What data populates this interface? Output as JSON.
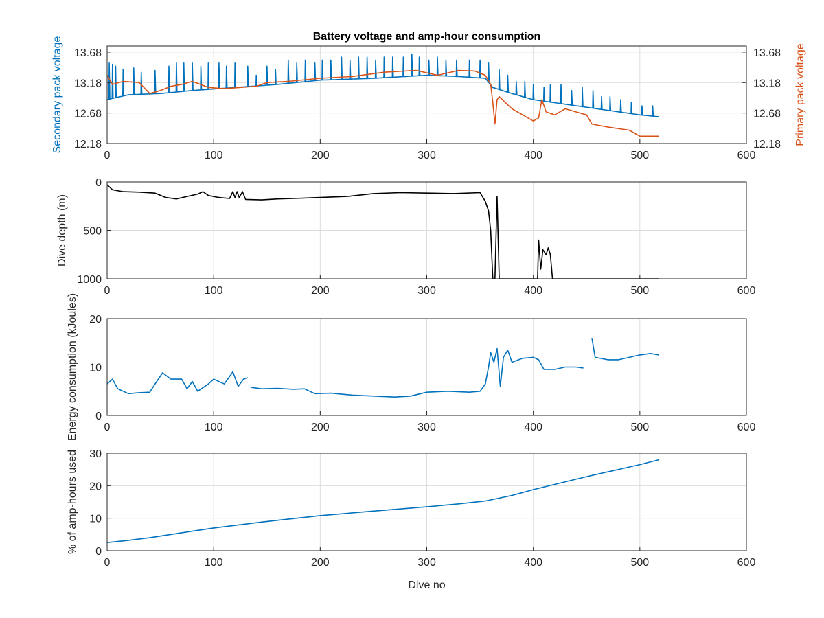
{
  "chart_data": [
    {
      "type": "line",
      "title": "Battery voltage and amp-hour consumption",
      "xlabel": "",
      "xlim": [
        0,
        600
      ],
      "xticks": [
        0,
        100,
        200,
        300,
        400,
        500,
        600
      ],
      "ylabel_left": "Secondary pack voltage",
      "ylabel_right": "Primary pack voltage",
      "ylim": [
        12.18,
        13.78
      ],
      "yticks": [
        "12.18",
        "12.68",
        "13.18",
        "13.68"
      ],
      "grid": true,
      "series": [
        {
          "axis": "left",
          "color": "#0072BD",
          "baseline": [
            [
              0,
              12.9
            ],
            [
              20,
              12.98
            ],
            [
              50,
              13.0
            ],
            [
              80,
              13.05
            ],
            [
              120,
              13.1
            ],
            [
              160,
              13.15
            ],
            [
              200,
              13.22
            ],
            [
              250,
              13.25
            ],
            [
              300,
              13.3
            ],
            [
              330,
              13.28
            ],
            [
              355,
              13.25
            ],
            [
              362,
              13.1
            ],
            [
              380,
              13.0
            ],
            [
              400,
              12.9
            ],
            [
              420,
              12.85
            ],
            [
              440,
              12.8
            ],
            [
              460,
              12.75
            ],
            [
              480,
              12.7
            ],
            [
              500,
              12.65
            ],
            [
              518,
              12.62
            ]
          ],
          "spikes": [
            [
              2,
              13.5
            ],
            [
              5,
              13.48
            ],
            [
              8,
              13.45
            ],
            [
              15,
              13.4
            ],
            [
              25,
              13.42
            ],
            [
              32,
              13.35
            ],
            [
              45,
              13.38
            ],
            [
              58,
              13.45
            ],
            [
              65,
              13.5
            ],
            [
              72,
              13.5
            ],
            [
              80,
              13.5
            ],
            [
              88,
              13.45
            ],
            [
              95,
              13.5
            ],
            [
              105,
              13.5
            ],
            [
              112,
              13.45
            ],
            [
              120,
              13.5
            ],
            [
              132,
              13.45
            ],
            [
              140,
              13.3
            ],
            [
              150,
              13.45
            ],
            [
              158,
              13.4
            ],
            [
              170,
              13.55
            ],
            [
              178,
              13.5
            ],
            [
              186,
              13.55
            ],
            [
              195,
              13.5
            ],
            [
              202,
              13.55
            ],
            [
              210,
              13.55
            ],
            [
              220,
              13.6
            ],
            [
              228,
              13.55
            ],
            [
              236,
              13.6
            ],
            [
              244,
              13.6
            ],
            [
              252,
              13.55
            ],
            [
              260,
              13.6
            ],
            [
              268,
              13.6
            ],
            [
              278,
              13.6
            ],
            [
              286,
              13.65
            ],
            [
              293,
              13.6
            ],
            [
              302,
              13.55
            ],
            [
              310,
              13.6
            ],
            [
              318,
              13.55
            ],
            [
              328,
              13.55
            ],
            [
              340,
              13.55
            ],
            [
              350,
              13.55
            ],
            [
              358,
              13.5
            ],
            [
              368,
              13.4
            ],
            [
              376,
              13.3
            ],
            [
              384,
              13.2
            ],
            [
              392,
              13.2
            ],
            [
              400,
              13.15
            ],
            [
              410,
              13.1
            ],
            [
              416,
              13.15
            ],
            [
              426,
              13.15
            ],
            [
              436,
              13.05
            ],
            [
              446,
              13.1
            ],
            [
              456,
              13.05
            ],
            [
              464,
              12.95
            ],
            [
              472,
              12.95
            ],
            [
              482,
              12.9
            ],
            [
              492,
              12.85
            ],
            [
              502,
              12.8
            ],
            [
              512,
              12.8
            ]
          ]
        },
        {
          "axis": "right",
          "color": "#D95319",
          "points": [
            [
              0,
              13.3
            ],
            [
              5,
              13.15
            ],
            [
              15,
              13.2
            ],
            [
              30,
              13.18
            ],
            [
              40,
              13.0
            ],
            [
              50,
              13.05
            ],
            [
              60,
              13.12
            ],
            [
              70,
              13.15
            ],
            [
              80,
              13.2
            ],
            [
              95,
              13.1
            ],
            [
              110,
              13.08
            ],
            [
              125,
              13.1
            ],
            [
              140,
              13.12
            ],
            [
              150,
              13.18
            ],
            [
              170,
              13.2
            ],
            [
              200,
              13.25
            ],
            [
              230,
              13.28
            ],
            [
              260,
              13.35
            ],
            [
              290,
              13.38
            ],
            [
              310,
              13.3
            ],
            [
              330,
              13.38
            ],
            [
              345,
              13.37
            ],
            [
              355,
              13.3
            ],
            [
              360,
              13.15
            ],
            [
              362,
              12.85
            ],
            [
              364,
              12.5
            ],
            [
              366,
              12.9
            ],
            [
              368,
              12.95
            ],
            [
              380,
              12.75
            ],
            [
              395,
              12.6
            ],
            [
              400,
              12.55
            ],
            [
              405,
              12.6
            ],
            [
              408,
              12.9
            ],
            [
              412,
              12.7
            ],
            [
              420,
              12.65
            ],
            [
              430,
              12.75
            ],
            [
              440,
              12.7
            ],
            [
              450,
              12.65
            ],
            [
              455,
              12.5
            ],
            [
              470,
              12.45
            ],
            [
              490,
              12.4
            ],
            [
              500,
              12.3
            ],
            [
              510,
              12.3
            ],
            [
              518,
              12.3
            ]
          ]
        }
      ]
    },
    {
      "type": "line",
      "title": "",
      "xlabel": "",
      "ylabel": "Dive depth (m)",
      "xlim": [
        0,
        600
      ],
      "xticks": [
        0,
        100,
        200,
        300,
        400,
        500,
        600
      ],
      "ylim": [
        0,
        1000
      ],
      "yreverse": true,
      "yticks": [
        0,
        500,
        1000
      ],
      "grid": true,
      "series": [
        {
          "color": "#000000",
          "points": [
            [
              0,
              30
            ],
            [
              5,
              80
            ],
            [
              15,
              100
            ],
            [
              30,
              105
            ],
            [
              45,
              115
            ],
            [
              55,
              160
            ],
            [
              65,
              175
            ],
            [
              75,
              150
            ],
            [
              85,
              125
            ],
            [
              90,
              100
            ],
            [
              95,
              140
            ],
            [
              105,
              160
            ],
            [
              115,
              170
            ],
            [
              118,
              100
            ],
            [
              120,
              160
            ],
            [
              122,
              100
            ],
            [
              124,
              160
            ],
            [
              127,
              100
            ],
            [
              130,
              180
            ],
            [
              145,
              185
            ],
            [
              160,
              175
            ],
            [
              175,
              170
            ],
            [
              200,
              160
            ],
            [
              225,
              150
            ],
            [
              250,
              120
            ],
            [
              275,
              110
            ],
            [
              300,
              115
            ],
            [
              325,
              120
            ],
            [
              350,
              110
            ],
            [
              355,
              200
            ],
            [
              358,
              300
            ],
            [
              360,
              500
            ],
            [
              362,
              1000
            ],
            [
              364,
              1000
            ],
            [
              366,
              150
            ],
            [
              368,
              1000
            ],
            [
              380,
              1000
            ],
            [
              400,
              1000
            ],
            [
              404,
              1000
            ],
            [
              405,
              600
            ],
            [
              407,
              900
            ],
            [
              409,
              700
            ],
            [
              412,
              750
            ],
            [
              414,
              680
            ],
            [
              416,
              750
            ],
            [
              418,
              1000
            ],
            [
              430,
              1000
            ],
            [
              460,
              1000
            ],
            [
              490,
              1000
            ],
            [
              518,
              1000
            ]
          ]
        }
      ]
    },
    {
      "type": "line",
      "title": "",
      "xlabel": "",
      "ylabel": "Energy consumption (kJoules)",
      "xlim": [
        0,
        600
      ],
      "xticks": [
        0,
        100,
        200,
        300,
        400,
        500,
        600
      ],
      "ylim": [
        0,
        20
      ],
      "yticks": [
        0,
        10,
        20
      ],
      "grid": true,
      "series": [
        {
          "color": "#0072BD",
          "segments": [
            [
              [
                0,
                6.5
              ],
              [
                5,
                7.5
              ],
              [
                10,
                5.5
              ],
              [
                20,
                4.5
              ],
              [
                30,
                4.7
              ],
              [
                40,
                4.8
              ],
              [
                45,
                6.5
              ],
              [
                52,
                8.8
              ],
              [
                60,
                7.5
              ],
              [
                70,
                7.5
              ],
              [
                75,
                5.5
              ],
              [
                80,
                7
              ],
              [
                85,
                5
              ],
              [
                95,
                6.5
              ],
              [
                100,
                7.5
              ],
              [
                110,
                6.5
              ],
              [
                118,
                9
              ],
              [
                123,
                6
              ],
              [
                128,
                7.5
              ],
              [
                132,
                7.8
              ]
            ],
            [
              [
                135,
                5.8
              ],
              [
                145,
                5.5
              ],
              [
                160,
                5.6
              ],
              [
                175,
                5.4
              ],
              [
                185,
                5.5
              ],
              [
                195,
                4.5
              ],
              [
                210,
                4.6
              ],
              [
                230,
                4.2
              ],
              [
                250,
                4.0
              ],
              [
                270,
                3.8
              ],
              [
                285,
                4.0
              ],
              [
                300,
                4.8
              ],
              [
                320,
                5.0
              ],
              [
                340,
                4.8
              ],
              [
                350,
                5.0
              ],
              [
                355,
                6.5
              ],
              [
                358,
                10.0
              ],
              [
                360,
                13.0
              ],
              [
                363,
                11.0
              ],
              [
                366,
                13.8
              ],
              [
                369,
                6.0
              ],
              [
                372,
                12.0
              ],
              [
                376,
                13.5
              ],
              [
                380,
                11.0
              ],
              [
                390,
                11.8
              ],
              [
                400,
                12.0
              ],
              [
                405,
                11.5
              ],
              [
                410,
                9.5
              ],
              [
                420,
                9.5
              ],
              [
                430,
                10.0
              ],
              [
                440,
                10.0
              ],
              [
                447,
                9.8
              ]
            ],
            [
              [
                455,
                16.0
              ],
              [
                458,
                12.0
              ],
              [
                470,
                11.5
              ],
              [
                480,
                11.5
              ],
              [
                490,
                12.0
              ],
              [
                500,
                12.5
              ],
              [
                510,
                12.8
              ],
              [
                518,
                12.5
              ]
            ]
          ]
        }
      ]
    },
    {
      "type": "line",
      "title": "",
      "xlabel": "Dive no",
      "ylabel": "% of amp-hours used",
      "xlim": [
        0,
        600
      ],
      "xticks": [
        0,
        100,
        200,
        300,
        400,
        500,
        600
      ],
      "ylim": [
        0,
        30
      ],
      "yticks": [
        0,
        10,
        20,
        30
      ],
      "grid": true,
      "series": [
        {
          "color": "#0072BD",
          "points": [
            [
              0,
              2.5
            ],
            [
              20,
              3.2
            ],
            [
              40,
              4.0
            ],
            [
              60,
              5.0
            ],
            [
              80,
              6.0
            ],
            [
              100,
              7.0
            ],
            [
              150,
              9.0
            ],
            [
              200,
              10.8
            ],
            [
              250,
              12.2
            ],
            [
              300,
              13.5
            ],
            [
              330,
              14.4
            ],
            [
              355,
              15.3
            ],
            [
              380,
              17.0
            ],
            [
              400,
              18.8
            ],
            [
              450,
              22.8
            ],
            [
              500,
              26.5
            ],
            [
              518,
              28.0
            ]
          ]
        }
      ]
    }
  ]
}
